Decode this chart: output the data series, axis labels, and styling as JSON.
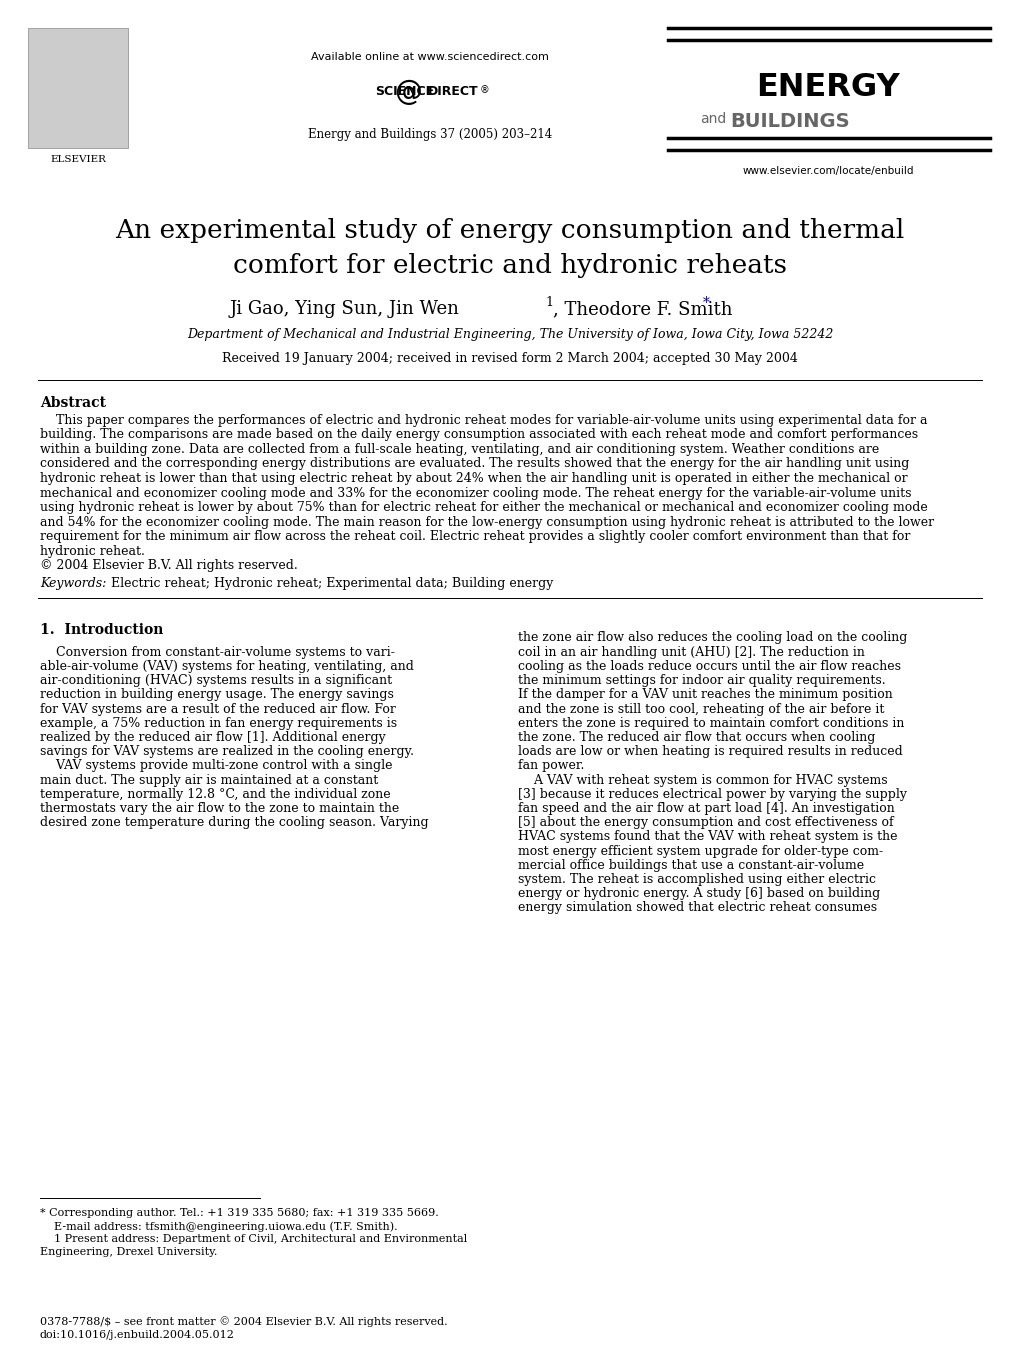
{
  "page_width": 10.2,
  "page_height": 13.61,
  "background": "#ffffff",
  "header": {
    "elsevier_text": "ELSEVIER",
    "available_online": "Available online at www.sciencedirect.com",
    "journal_ref": "Energy and Buildings 37 (2005) 203–214",
    "energy_text": "ENERGY",
    "and_text": "and",
    "buildings_text": "BUILDINGS",
    "url": "www.elsevier.com/locate/enbuild"
  },
  "title": "An experimental study of energy consumption and thermal\ncomfort for electric and hydronic reheats",
  "authors_part1": "Ji Gao, Ying Sun, Jin Wen",
  "authors_sup": "1",
  "authors_part2": ", Theodore F. Smith",
  "authors_asterisk": "*",
  "affiliation": "Department of Mechanical and Industrial Engineering, The University of Iowa, Iowa City, Iowa 52242",
  "received": "Received 19 January 2004; received in revised form 2 March 2004; accepted 30 May 2004",
  "abstract_title": "Abstract",
  "abstract_lines": [
    "    This paper compares the performances of electric and hydronic reheat modes for variable-air-volume units using experimental data for a",
    "building. The comparisons are made based on the daily energy consumption associated with each reheat mode and comfort performances",
    "within a building zone. Data are collected from a full-scale heating, ventilating, and air conditioning system. Weather conditions are",
    "considered and the corresponding energy distributions are evaluated. The results showed that the energy for the air handling unit using",
    "hydronic reheat is lower than that using electric reheat by about 24% when the air handling unit is operated in either the mechanical or",
    "mechanical and economizer cooling mode and 33% for the economizer cooling mode. The reheat energy for the variable-air-volume units",
    "using hydronic reheat is lower by about 75% than for electric reheat for either the mechanical or mechanical and economizer cooling mode",
    "and 54% for the economizer cooling mode. The main reason for the low-energy consumption using hydronic reheat is attributed to the lower",
    "requirement for the minimum air flow across the reheat coil. Electric reheat provides a slightly cooler comfort environment than that for",
    "hydronic reheat.",
    "© 2004 Elsevier B.V. All rights reserved."
  ],
  "keywords_label": "Keywords:",
  "keywords_text": "  Electric reheat; Hydronic reheat; Experimental data; Building energy",
  "section1_title": "1.  Introduction",
  "left_col_lines": [
    "",
    "    Conversion from constant-air-volume systems to vari-",
    "able-air-volume (VAV) systems for heating, ventilating, and",
    "air-conditioning (HVAC) systems results in a significant",
    "reduction in building energy usage. The energy savings",
    "for VAV systems are a result of the reduced air flow. For",
    "example, a 75% reduction in fan energy requirements is",
    "realized by the reduced air flow [1]. Additional energy",
    "savings for VAV systems are realized in the cooling energy.",
    "    VAV systems provide multi-zone control with a single",
    "main duct. The supply air is maintained at a constant",
    "temperature, normally 12.8 °C, and the individual zone",
    "thermostats vary the air flow to the zone to maintain the",
    "desired zone temperature during the cooling season. Varying"
  ],
  "right_col_lines": [
    "the zone air flow also reduces the cooling load on the cooling",
    "coil in an air handling unit (AHU) [2]. The reduction in",
    "cooling as the loads reduce occurs until the air flow reaches",
    "the minimum settings for indoor air quality requirements.",
    "If the damper for a VAV unit reaches the minimum position",
    "and the zone is still too cool, reheating of the air before it",
    "enters the zone is required to maintain comfort conditions in",
    "the zone. The reduced air flow that occurs when cooling",
    "loads are low or when heating is required results in reduced",
    "fan power.",
    "    A VAV with reheat system is common for HVAC systems",
    "[3] because it reduces electrical power by varying the supply",
    "fan speed and the air flow at part load [4]. An investigation",
    "[5] about the energy consumption and cost effectiveness of",
    "HVAC systems found that the VAV with reheat system is the",
    "most energy efficient system upgrade for older-type com-",
    "mercial office buildings that use a constant-air-volume",
    "system. The reheat is accomplished using either electric",
    "energy or hydronic energy. A study [6] based on building",
    "energy simulation showed that electric reheat consumes"
  ],
  "footnote_asterisk_line": "* Corresponding author. Tel.: +1 319 335 5680; fax: +1 319 335 5669.",
  "footnote_email_line": "    E-mail address: tfsmith@engineering.uiowa.edu (T.F. Smith).",
  "footnote_1_line1": "    1 Present address: Department of Civil, Architectural and Environmental",
  "footnote_1_line2": "Engineering, Drexel University.",
  "bottom_line1": "0378-7788/$ – see front matter © 2004 Elsevier B.V. All rights reserved.",
  "bottom_line2": "doi:10.1016/j.enbuild.2004.05.012"
}
